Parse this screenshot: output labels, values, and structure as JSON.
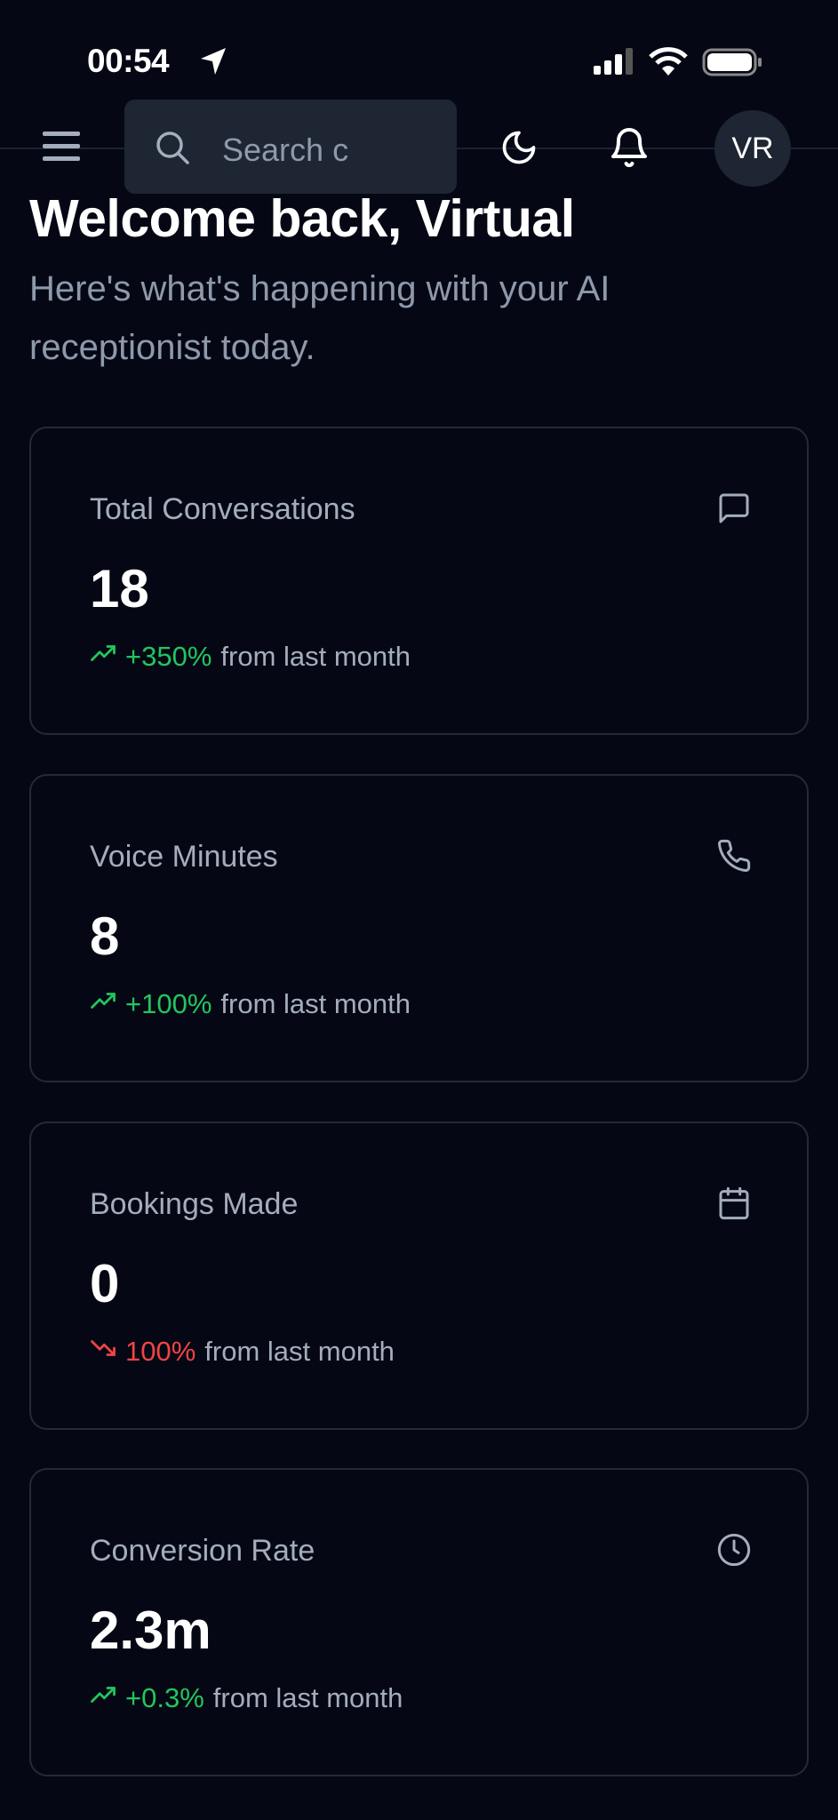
{
  "status_bar": {
    "time": "00:54"
  },
  "header": {
    "search_placeholder": "Search c",
    "avatar_initials": "VR"
  },
  "welcome": {
    "title": "Welcome back, Virtual",
    "subtitle": "Here's what's happening with your AI receptionist today."
  },
  "colors": {
    "up": "#22c55e",
    "down": "#ef4444",
    "background": "#050814"
  },
  "stats": [
    {
      "label": "Total Conversations",
      "value": "18",
      "change": "+350%",
      "direction": "up",
      "suffix": "from last month",
      "icon": "message-square-icon"
    },
    {
      "label": "Voice Minutes",
      "value": "8",
      "change": "+100%",
      "direction": "up",
      "suffix": "from last month",
      "icon": "phone-icon"
    },
    {
      "label": "Bookings Made",
      "value": "0",
      "change": "100%",
      "direction": "down",
      "suffix": "from last month",
      "icon": "calendar-icon"
    },
    {
      "label": "Conversion Rate",
      "value": "2.3m",
      "change": "+0.3%",
      "direction": "up",
      "suffix": "from last month",
      "icon": "clock-icon"
    }
  ]
}
